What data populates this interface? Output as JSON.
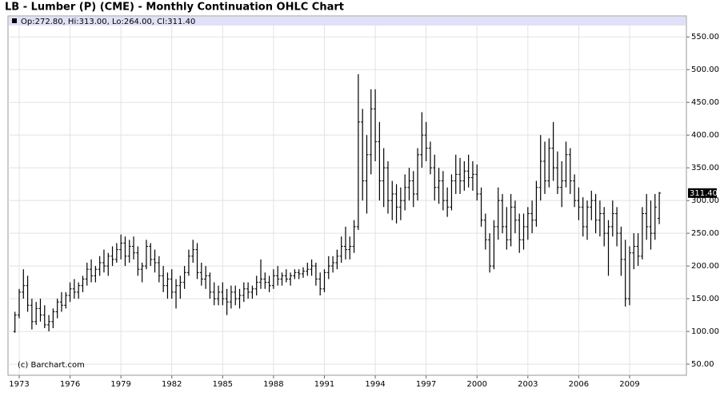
{
  "chart_data": {
    "type": "ohlc",
    "title": "LB - Lumber (P) (CME) - Monthly Continuation OHLC Chart",
    "info": "Op:272.80, Hi:313.00, Lo:264.00, Cl:311.40",
    "credit": "(c) Barchart.com",
    "color": "#000000",
    "grid": true,
    "last_price": {
      "value": 311.4,
      "label": "311.40"
    },
    "xlim": [
      1972.34,
      2012.35
    ],
    "xticks": [
      1973,
      1976,
      1979,
      1982,
      1985,
      1988,
      1991,
      1994,
      1997,
      2000,
      2003,
      2006,
      2009
    ],
    "ylim": [
      33,
      582
    ],
    "yticks": [
      {
        "value": 50,
        "label": "50.00"
      },
      {
        "value": 100,
        "label": "100.00"
      },
      {
        "value": 150,
        "label": "150.00"
      },
      {
        "value": 200,
        "label": "200.00"
      },
      {
        "value": 250,
        "label": "250.00"
      },
      {
        "value": 300,
        "label": "300.00"
      },
      {
        "value": 350,
        "label": "350.00"
      },
      {
        "value": 400,
        "label": "400.00"
      },
      {
        "value": 450,
        "label": "450.00"
      },
      {
        "value": 500,
        "label": "500.00"
      },
      {
        "value": 550,
        "label": "550.00"
      }
    ],
    "x": [
      1972.75,
      1973,
      1973.25,
      1973.5,
      1973.75,
      1974,
      1974.25,
      1974.5,
      1974.75,
      1975,
      1975.25,
      1975.5,
      1975.75,
      1976,
      1976.25,
      1976.5,
      1976.75,
      1977,
      1977.25,
      1977.5,
      1977.75,
      1978,
      1978.25,
      1978.5,
      1978.75,
      1979,
      1979.25,
      1979.5,
      1979.75,
      1980,
      1980.25,
      1980.5,
      1980.75,
      1981,
      1981.25,
      1981.5,
      1981.75,
      1982,
      1982.25,
      1982.5,
      1982.75,
      1983,
      1983.25,
      1983.5,
      1983.75,
      1984,
      1984.25,
      1984.5,
      1984.75,
      1985,
      1985.25,
      1985.5,
      1985.75,
      1986,
      1986.25,
      1986.5,
      1986.75,
      1987,
      1987.25,
      1987.5,
      1987.75,
      1988,
      1988.25,
      1988.5,
      1988.75,
      1989,
      1989.25,
      1989.5,
      1989.75,
      1990,
      1990.25,
      1990.5,
      1990.75,
      1991,
      1991.25,
      1991.5,
      1991.75,
      1992,
      1992.25,
      1992.5,
      1992.75,
      1993,
      1993.25,
      1993.5,
      1993.75,
      1994,
      1994.25,
      1994.5,
      1994.75,
      1995,
      1995.25,
      1995.5,
      1995.75,
      1996,
      1996.25,
      1996.5,
      1996.75,
      1997,
      1997.25,
      1997.5,
      1997.75,
      1998,
      1998.25,
      1998.5,
      1998.75,
      1999,
      1999.25,
      1999.5,
      1999.75,
      2000,
      2000.25,
      2000.5,
      2000.75,
      2001,
      2001.25,
      2001.5,
      2001.75,
      2002,
      2002.25,
      2002.5,
      2002.75,
      2003,
      2003.25,
      2003.5,
      2003.75,
      2004,
      2004.25,
      2004.5,
      2004.75,
      2005,
      2005.25,
      2005.5,
      2005.75,
      2006,
      2006.25,
      2006.5,
      2006.75,
      2007,
      2007.25,
      2007.5,
      2007.75,
      2008,
      2008.25,
      2008.5,
      2008.75,
      2009,
      2009.25,
      2009.5,
      2009.75,
      2010,
      2010.25,
      2010.5,
      2010.75
    ],
    "open": [
      100,
      125,
      160,
      170,
      140,
      115,
      135,
      125,
      110,
      115,
      130,
      145,
      140,
      155,
      165,
      160,
      170,
      180,
      195,
      185,
      195,
      205,
      200,
      215,
      210,
      225,
      235,
      215,
      230,
      220,
      195,
      200,
      230,
      210,
      205,
      185,
      170,
      180,
      160,
      170,
      175,
      190,
      215,
      225,
      190,
      180,
      185,
      160,
      150,
      160,
      150,
      145,
      160,
      150,
      155,
      165,
      160,
      165,
      175,
      180,
      175,
      170,
      185,
      180,
      185,
      180,
      185,
      190,
      188,
      192,
      195,
      200,
      180,
      165,
      190,
      200,
      205,
      215,
      230,
      225,
      230,
      260,
      420,
      330,
      370,
      440,
      390,
      330,
      350,
      300,
      310,
      290,
      300,
      320,
      330,
      310,
      370,
      400,
      380,
      350,
      320,
      330,
      300,
      290,
      330,
      340,
      330,
      345,
      335,
      340,
      310,
      270,
      240,
      200,
      260,
      300,
      260,
      240,
      290,
      270,
      240,
      260,
      280,
      270,
      320,
      360,
      330,
      380,
      350,
      320,
      330,
      370,
      330,
      300,
      290,
      260,
      290,
      300,
      270,
      280,
      250,
      260,
      280,
      250,
      210,
      150,
      220,
      230,
      215,
      280,
      260,
      250,
      272.8
    ],
    "high": [
      130,
      165,
      195,
      185,
      150,
      145,
      150,
      140,
      125,
      135,
      150,
      160,
      160,
      175,
      180,
      175,
      185,
      205,
      210,
      200,
      215,
      225,
      220,
      230,
      235,
      248,
      245,
      240,
      245,
      230,
      205,
      240,
      235,
      225,
      215,
      200,
      190,
      195,
      180,
      185,
      200,
      225,
      240,
      235,
      205,
      200,
      190,
      175,
      170,
      175,
      165,
      170,
      170,
      165,
      175,
      175,
      170,
      185,
      210,
      190,
      185,
      195,
      200,
      190,
      195,
      190,
      195,
      195,
      198,
      205,
      210,
      205,
      190,
      195,
      215,
      215,
      225,
      245,
      260,
      245,
      270,
      493,
      440,
      400,
      470,
      470,
      420,
      380,
      360,
      330,
      325,
      320,
      340,
      350,
      345,
      380,
      435,
      420,
      390,
      370,
      350,
      345,
      320,
      340,
      370,
      365,
      360,
      370,
      360,
      355,
      320,
      280,
      250,
      270,
      320,
      310,
      290,
      310,
      300,
      280,
      280,
      290,
      300,
      330,
      400,
      390,
      395,
      420,
      375,
      360,
      390,
      380,
      340,
      320,
      305,
      300,
      315,
      310,
      300,
      290,
      270,
      300,
      290,
      260,
      240,
      230,
      250,
      250,
      290,
      310,
      300,
      310,
      313
    ],
    "low": [
      98,
      120,
      150,
      130,
      103,
      110,
      115,
      105,
      100,
      105,
      120,
      130,
      135,
      145,
      150,
      150,
      160,
      170,
      175,
      175,
      185,
      190,
      185,
      200,
      205,
      210,
      200,
      205,
      210,
      185,
      175,
      195,
      200,
      190,
      175,
      160,
      150,
      150,
      135,
      150,
      165,
      185,
      205,
      180,
      170,
      165,
      150,
      140,
      140,
      140,
      125,
      135,
      140,
      135,
      145,
      150,
      150,
      155,
      165,
      165,
      160,
      165,
      170,
      170,
      175,
      170,
      180,
      180,
      182,
      185,
      185,
      170,
      155,
      160,
      180,
      190,
      195,
      205,
      210,
      210,
      220,
      255,
      300,
      280,
      340,
      360,
      300,
      290,
      280,
      270,
      265,
      270,
      285,
      300,
      290,
      300,
      350,
      360,
      340,
      300,
      295,
      285,
      275,
      285,
      310,
      310,
      315,
      320,
      315,
      300,
      260,
      225,
      190,
      195,
      240,
      250,
      225,
      230,
      250,
      220,
      225,
      240,
      250,
      260,
      300,
      310,
      320,
      330,
      310,
      290,
      320,
      310,
      290,
      270,
      245,
      240,
      270,
      250,
      245,
      230,
      185,
      245,
      230,
      185,
      138,
      140,
      195,
      200,
      210,
      240,
      225,
      240,
      264
    ],
    "close": [
      125,
      160,
      170,
      140,
      115,
      135,
      125,
      110,
      115,
      130,
      145,
      140,
      155,
      165,
      160,
      170,
      180,
      195,
      185,
      195,
      205,
      200,
      215,
      210,
      225,
      235,
      215,
      230,
      220,
      195,
      200,
      230,
      210,
      205,
      185,
      170,
      180,
      160,
      170,
      175,
      190,
      215,
      225,
      190,
      180,
      185,
      160,
      150,
      160,
      150,
      145,
      160,
      150,
      155,
      165,
      160,
      165,
      175,
      180,
      175,
      170,
      185,
      180,
      185,
      180,
      185,
      190,
      188,
      192,
      195,
      200,
      180,
      165,
      190,
      200,
      205,
      215,
      230,
      225,
      230,
      260,
      420,
      330,
      370,
      440,
      390,
      330,
      350,
      300,
      310,
      290,
      300,
      320,
      330,
      310,
      370,
      400,
      380,
      350,
      320,
      330,
      300,
      290,
      330,
      340,
      330,
      345,
      335,
      340,
      310,
      270,
      240,
      200,
      260,
      300,
      260,
      240,
      290,
      270,
      240,
      260,
      280,
      270,
      320,
      360,
      330,
      380,
      350,
      320,
      330,
      370,
      330,
      300,
      290,
      260,
      290,
      300,
      270,
      280,
      250,
      260,
      280,
      250,
      210,
      150,
      220,
      230,
      215,
      280,
      260,
      250,
      290,
      311.4
    ]
  }
}
